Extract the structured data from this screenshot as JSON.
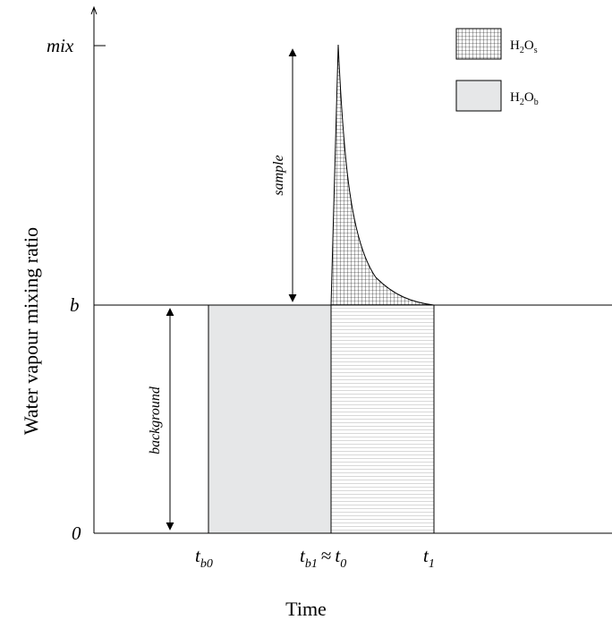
{
  "axes": {
    "y_label": "Water vapour mixing ratio",
    "x_label": "Time",
    "y_ticks": {
      "mix": "mix",
      "b": "b",
      "zero": "0"
    },
    "x_ticks": {
      "tb0": {
        "base": "t",
        "sub": "b0"
      },
      "tb1": {
        "base": "t",
        "sub": "b1"
      },
      "approx": "≈",
      "t0": {
        "base": "t",
        "sub": "0"
      },
      "t1": {
        "base": "t",
        "sub": "1"
      }
    }
  },
  "arrows": {
    "sample": "sample",
    "background": "background"
  },
  "legend": [
    {
      "pattern": "grid",
      "main": "H",
      "sub1": "2",
      "main2": "O",
      "sub2": "s"
    },
    {
      "pattern": "gray",
      "main": "H",
      "sub1": "2",
      "main2": "O",
      "sub2": "b"
    }
  ],
  "colors": {
    "gray_fill": "#e6e7e8",
    "line": "#000000",
    "stripe": "#c8c8c8"
  }
}
